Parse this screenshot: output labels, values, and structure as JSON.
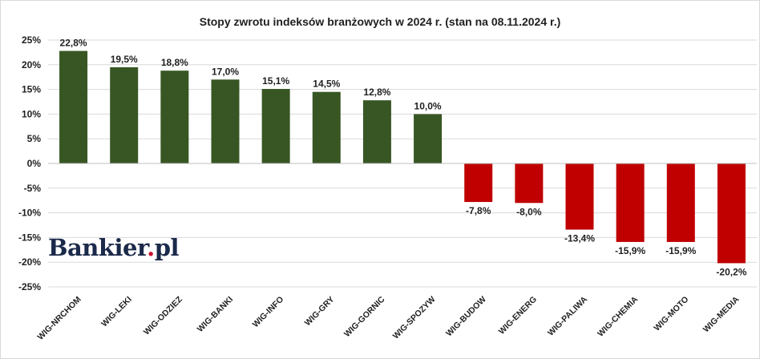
{
  "chart_data": {
    "type": "bar",
    "title": "Stopy zwrotu indeksów branżowych w 2024 r. (stan na 08.11.2024 r.)",
    "xlabel": "",
    "ylabel": "",
    "ylim": [
      -25,
      25
    ],
    "yticks": [
      "-25%",
      "-20%",
      "-15%",
      "-10%",
      "-5%",
      "0%",
      "5%",
      "10%",
      "15%",
      "20%",
      "25%"
    ],
    "ytick_values": [
      -25,
      -20,
      -15,
      -10,
      -5,
      0,
      5,
      10,
      15,
      20,
      25
    ],
    "grid": true,
    "legend": false,
    "categories": [
      "WIG-NRCHOM",
      "WIG-LEKI",
      "WIG-ODZIEZ",
      "WIG-BANKI",
      "WIG-INFO",
      "WIG-GRY",
      "WIG-GORNIC",
      "WIG-SPOZYW",
      "WIG-BUDOW",
      "WIG-ENERG",
      "WIG-PALIWA",
      "WIG-CHEMIA",
      "WIG-MOTO",
      "WIG-MEDIA"
    ],
    "values": [
      22.8,
      19.5,
      18.8,
      17.0,
      15.1,
      14.5,
      12.8,
      10.0,
      -7.8,
      -8.0,
      -13.4,
      -15.9,
      -15.9,
      -20.2
    ],
    "data_labels": [
      "22,8%",
      "19,5%",
      "18,8%",
      "17,0%",
      "15,1%",
      "14,5%",
      "12,8%",
      "10,0%",
      "-7,8%",
      "-8,0%",
      "-13,4%",
      "-15,9%",
      "-15,9%",
      "-20,2%"
    ],
    "colors": {
      "positive": "#375623",
      "negative": "#c00000",
      "grid": "#d9d9d9",
      "axis": "#bfbfbf",
      "text": "#1f1f1f"
    }
  },
  "logo": {
    "text_main": "Bankier",
    "text_dot": ".",
    "text_tld": "pl"
  }
}
